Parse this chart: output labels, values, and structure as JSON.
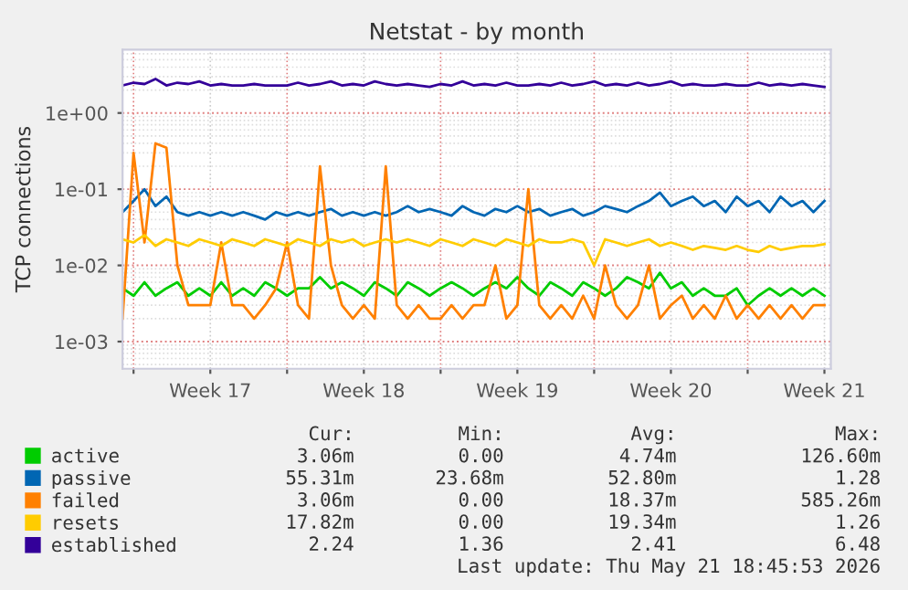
{
  "chart_data": {
    "type": "line",
    "title": "Netstat - by month",
    "ylabel": "TCP connections",
    "log": "y",
    "grid": true,
    "legend": "bottom left",
    "marker": "none",
    "line_style": "solid",
    "x": [
      "2026-04-19T12:00",
      "2026-04-20T00:00",
      "2026-04-20T12:00",
      "2026-04-21T00:00",
      "2026-04-21T12:00",
      "2026-04-22T00:00",
      "2026-04-22T12:00",
      "2026-04-23T00:00",
      "2026-04-23T12:00",
      "2026-04-24T00:00",
      "2026-04-24T12:00",
      "2026-04-25T00:00",
      "2026-04-25T12:00",
      "2026-04-26T00:00",
      "2026-04-26T12:00",
      "2026-04-27T00:00",
      "2026-04-27T12:00",
      "2026-04-28T00:00",
      "2026-04-28T12:00",
      "2026-04-29T00:00",
      "2026-04-29T12:00",
      "2026-04-30T00:00",
      "2026-04-30T12:00",
      "2026-05-01T00:00",
      "2026-05-01T12:00",
      "2026-05-02T00:00",
      "2026-05-02T12:00",
      "2026-05-03T00:00",
      "2026-05-03T12:00",
      "2026-05-04T00:00",
      "2026-05-04T12:00",
      "2026-05-05T00:00",
      "2026-05-05T12:00",
      "2026-05-06T00:00",
      "2026-05-06T12:00",
      "2026-05-07T00:00",
      "2026-05-07T12:00",
      "2026-05-08T00:00",
      "2026-05-08T12:00",
      "2026-05-09T00:00",
      "2026-05-09T12:00",
      "2026-05-10T00:00",
      "2026-05-10T12:00",
      "2026-05-11T00:00",
      "2026-05-11T12:00",
      "2026-05-12T00:00",
      "2026-05-12T12:00",
      "2026-05-13T00:00",
      "2026-05-13T12:00",
      "2026-05-14T00:00",
      "2026-05-14T12:00",
      "2026-05-15T00:00",
      "2026-05-15T12:00",
      "2026-05-16T00:00",
      "2026-05-16T12:00",
      "2026-05-17T00:00",
      "2026-05-17T12:00",
      "2026-05-18T00:00",
      "2026-05-18T12:00",
      "2026-05-19T00:00",
      "2026-05-19T12:00",
      "2026-05-20T00:00",
      "2026-05-20T12:00",
      "2026-05-21T00:00",
      "2026-05-21T12:00"
    ],
    "xlim": [
      "2026-04-19T12:00",
      "2026-05-21T19:00"
    ],
    "xticks": [
      {
        "value": "2026-04-20",
        "label": null
      },
      {
        "value": "2026-04-23T12:00",
        "label": "Week 17"
      },
      {
        "value": "2026-04-27",
        "label": null
      },
      {
        "value": "2026-04-30T12:00",
        "label": "Week 18"
      },
      {
        "value": "2026-05-04",
        "label": null
      },
      {
        "value": "2026-05-07T12:00",
        "label": "Week 19"
      },
      {
        "value": "2026-05-11",
        "label": null
      },
      {
        "value": "2026-05-14T12:00",
        "label": "Week 20"
      },
      {
        "value": "2026-05-18",
        "label": null
      },
      {
        "value": "2026-05-21T12:00",
        "label": "Week 21"
      }
    ],
    "ylim": [
      0.00044,
      6.8
    ],
    "yticks": [
      {
        "value": 0.001,
        "label": "1e-03"
      },
      {
        "value": 0.01,
        "label": "1e-02"
      },
      {
        "value": 0.1,
        "label": "1e-01"
      },
      {
        "value": 1,
        "label": "1e+00"
      }
    ],
    "series": [
      {
        "name": "active",
        "color": "#00cc00",
        "values": [
          0.005,
          0.004,
          0.006,
          0.004,
          0.005,
          0.006,
          0.004,
          0.005,
          0.004,
          0.006,
          0.004,
          0.005,
          0.004,
          0.006,
          0.005,
          0.004,
          0.005,
          0.005,
          0.007,
          0.005,
          0.006,
          0.005,
          0.004,
          0.006,
          0.005,
          0.004,
          0.006,
          0.005,
          0.004,
          0.005,
          0.006,
          0.005,
          0.004,
          0.005,
          0.006,
          0.005,
          0.007,
          0.005,
          0.004,
          0.006,
          0.005,
          0.004,
          0.006,
          0.005,
          0.004,
          0.005,
          0.007,
          0.006,
          0.005,
          0.008,
          0.005,
          0.006,
          0.004,
          0.005,
          0.004,
          0.004,
          0.005,
          0.003,
          0.004,
          0.005,
          0.004,
          0.005,
          0.004,
          0.005,
          0.004
        ]
      },
      {
        "name": "passive",
        "color": "#0066b3",
        "values": [
          0.05,
          0.07,
          0.1,
          0.06,
          0.08,
          0.05,
          0.045,
          0.05,
          0.045,
          0.05,
          0.045,
          0.05,
          0.045,
          0.04,
          0.05,
          0.045,
          0.05,
          0.045,
          0.05,
          0.055,
          0.045,
          0.05,
          0.045,
          0.05,
          0.045,
          0.05,
          0.06,
          0.05,
          0.055,
          0.05,
          0.045,
          0.06,
          0.05,
          0.045,
          0.055,
          0.05,
          0.06,
          0.05,
          0.055,
          0.045,
          0.05,
          0.055,
          0.045,
          0.05,
          0.06,
          0.055,
          0.05,
          0.06,
          0.07,
          0.09,
          0.06,
          0.07,
          0.08,
          0.06,
          0.07,
          0.05,
          0.08,
          0.06,
          0.07,
          0.05,
          0.08,
          0.06,
          0.07,
          0.05,
          0.07
        ]
      },
      {
        "name": "failed",
        "color": "#ff8000",
        "values": [
          0.002,
          0.3,
          0.02,
          0.4,
          0.35,
          0.01,
          0.003,
          0.003,
          0.003,
          0.02,
          0.003,
          0.003,
          0.002,
          0.003,
          0.005,
          0.02,
          0.003,
          0.002,
          0.2,
          0.01,
          0.003,
          0.002,
          0.003,
          0.002,
          0.2,
          0.003,
          0.002,
          0.003,
          0.002,
          0.002,
          0.003,
          0.002,
          0.003,
          0.003,
          0.01,
          0.002,
          0.003,
          0.1,
          0.003,
          0.002,
          0.003,
          0.002,
          0.004,
          0.002,
          0.01,
          0.003,
          0.002,
          0.003,
          0.01,
          0.002,
          0.003,
          0.004,
          0.002,
          0.003,
          0.002,
          0.004,
          0.002,
          0.003,
          0.002,
          0.003,
          0.002,
          0.003,
          0.002,
          0.003,
          0.003
        ]
      },
      {
        "name": "resets",
        "color": "#ffcc00",
        "values": [
          0.022,
          0.02,
          0.025,
          0.018,
          0.022,
          0.02,
          0.018,
          0.022,
          0.02,
          0.018,
          0.022,
          0.02,
          0.018,
          0.022,
          0.02,
          0.018,
          0.022,
          0.02,
          0.018,
          0.022,
          0.02,
          0.022,
          0.018,
          0.02,
          0.022,
          0.02,
          0.022,
          0.02,
          0.018,
          0.022,
          0.02,
          0.018,
          0.022,
          0.02,
          0.018,
          0.022,
          0.02,
          0.018,
          0.022,
          0.02,
          0.02,
          0.022,
          0.02,
          0.01,
          0.022,
          0.02,
          0.018,
          0.02,
          0.022,
          0.018,
          0.02,
          0.018,
          0.016,
          0.018,
          0.017,
          0.016,
          0.018,
          0.016,
          0.015,
          0.018,
          0.016,
          0.017,
          0.018,
          0.018,
          0.019
        ]
      },
      {
        "name": "established",
        "color": "#330099",
        "values": [
          2.3,
          2.5,
          2.4,
          2.8,
          2.3,
          2.5,
          2.4,
          2.6,
          2.3,
          2.4,
          2.3,
          2.3,
          2.4,
          2.3,
          2.3,
          2.3,
          2.5,
          2.3,
          2.4,
          2.6,
          2.3,
          2.4,
          2.3,
          2.6,
          2.4,
          2.3,
          2.4,
          2.3,
          2.2,
          2.4,
          2.3,
          2.6,
          2.3,
          2.4,
          2.3,
          2.5,
          2.3,
          2.3,
          2.4,
          2.3,
          2.5,
          2.3,
          2.4,
          2.6,
          2.3,
          2.4,
          2.3,
          2.5,
          2.3,
          2.4,
          2.6,
          2.3,
          2.4,
          2.3,
          2.3,
          2.4,
          2.3,
          2.3,
          2.5,
          2.3,
          2.4,
          2.3,
          2.4,
          2.3,
          2.2
        ]
      }
    ],
    "annotations": [
      "Cur:",
      "Min:",
      "Avg:",
      "Max:",
      "3.06m",
      "0.00",
      "4.74m",
      "126.60m",
      "55.31m",
      "23.68m",
      "52.80m",
      "1.28",
      "3.06m",
      "0.00",
      "18.37m",
      "585.26m",
      "17.82m",
      "0.00",
      "19.34m",
      "1.26",
      "2.24",
      "1.36",
      "2.41",
      "6.48",
      "Last update: Thu May 21 18:45:53 2026"
    ]
  }
}
